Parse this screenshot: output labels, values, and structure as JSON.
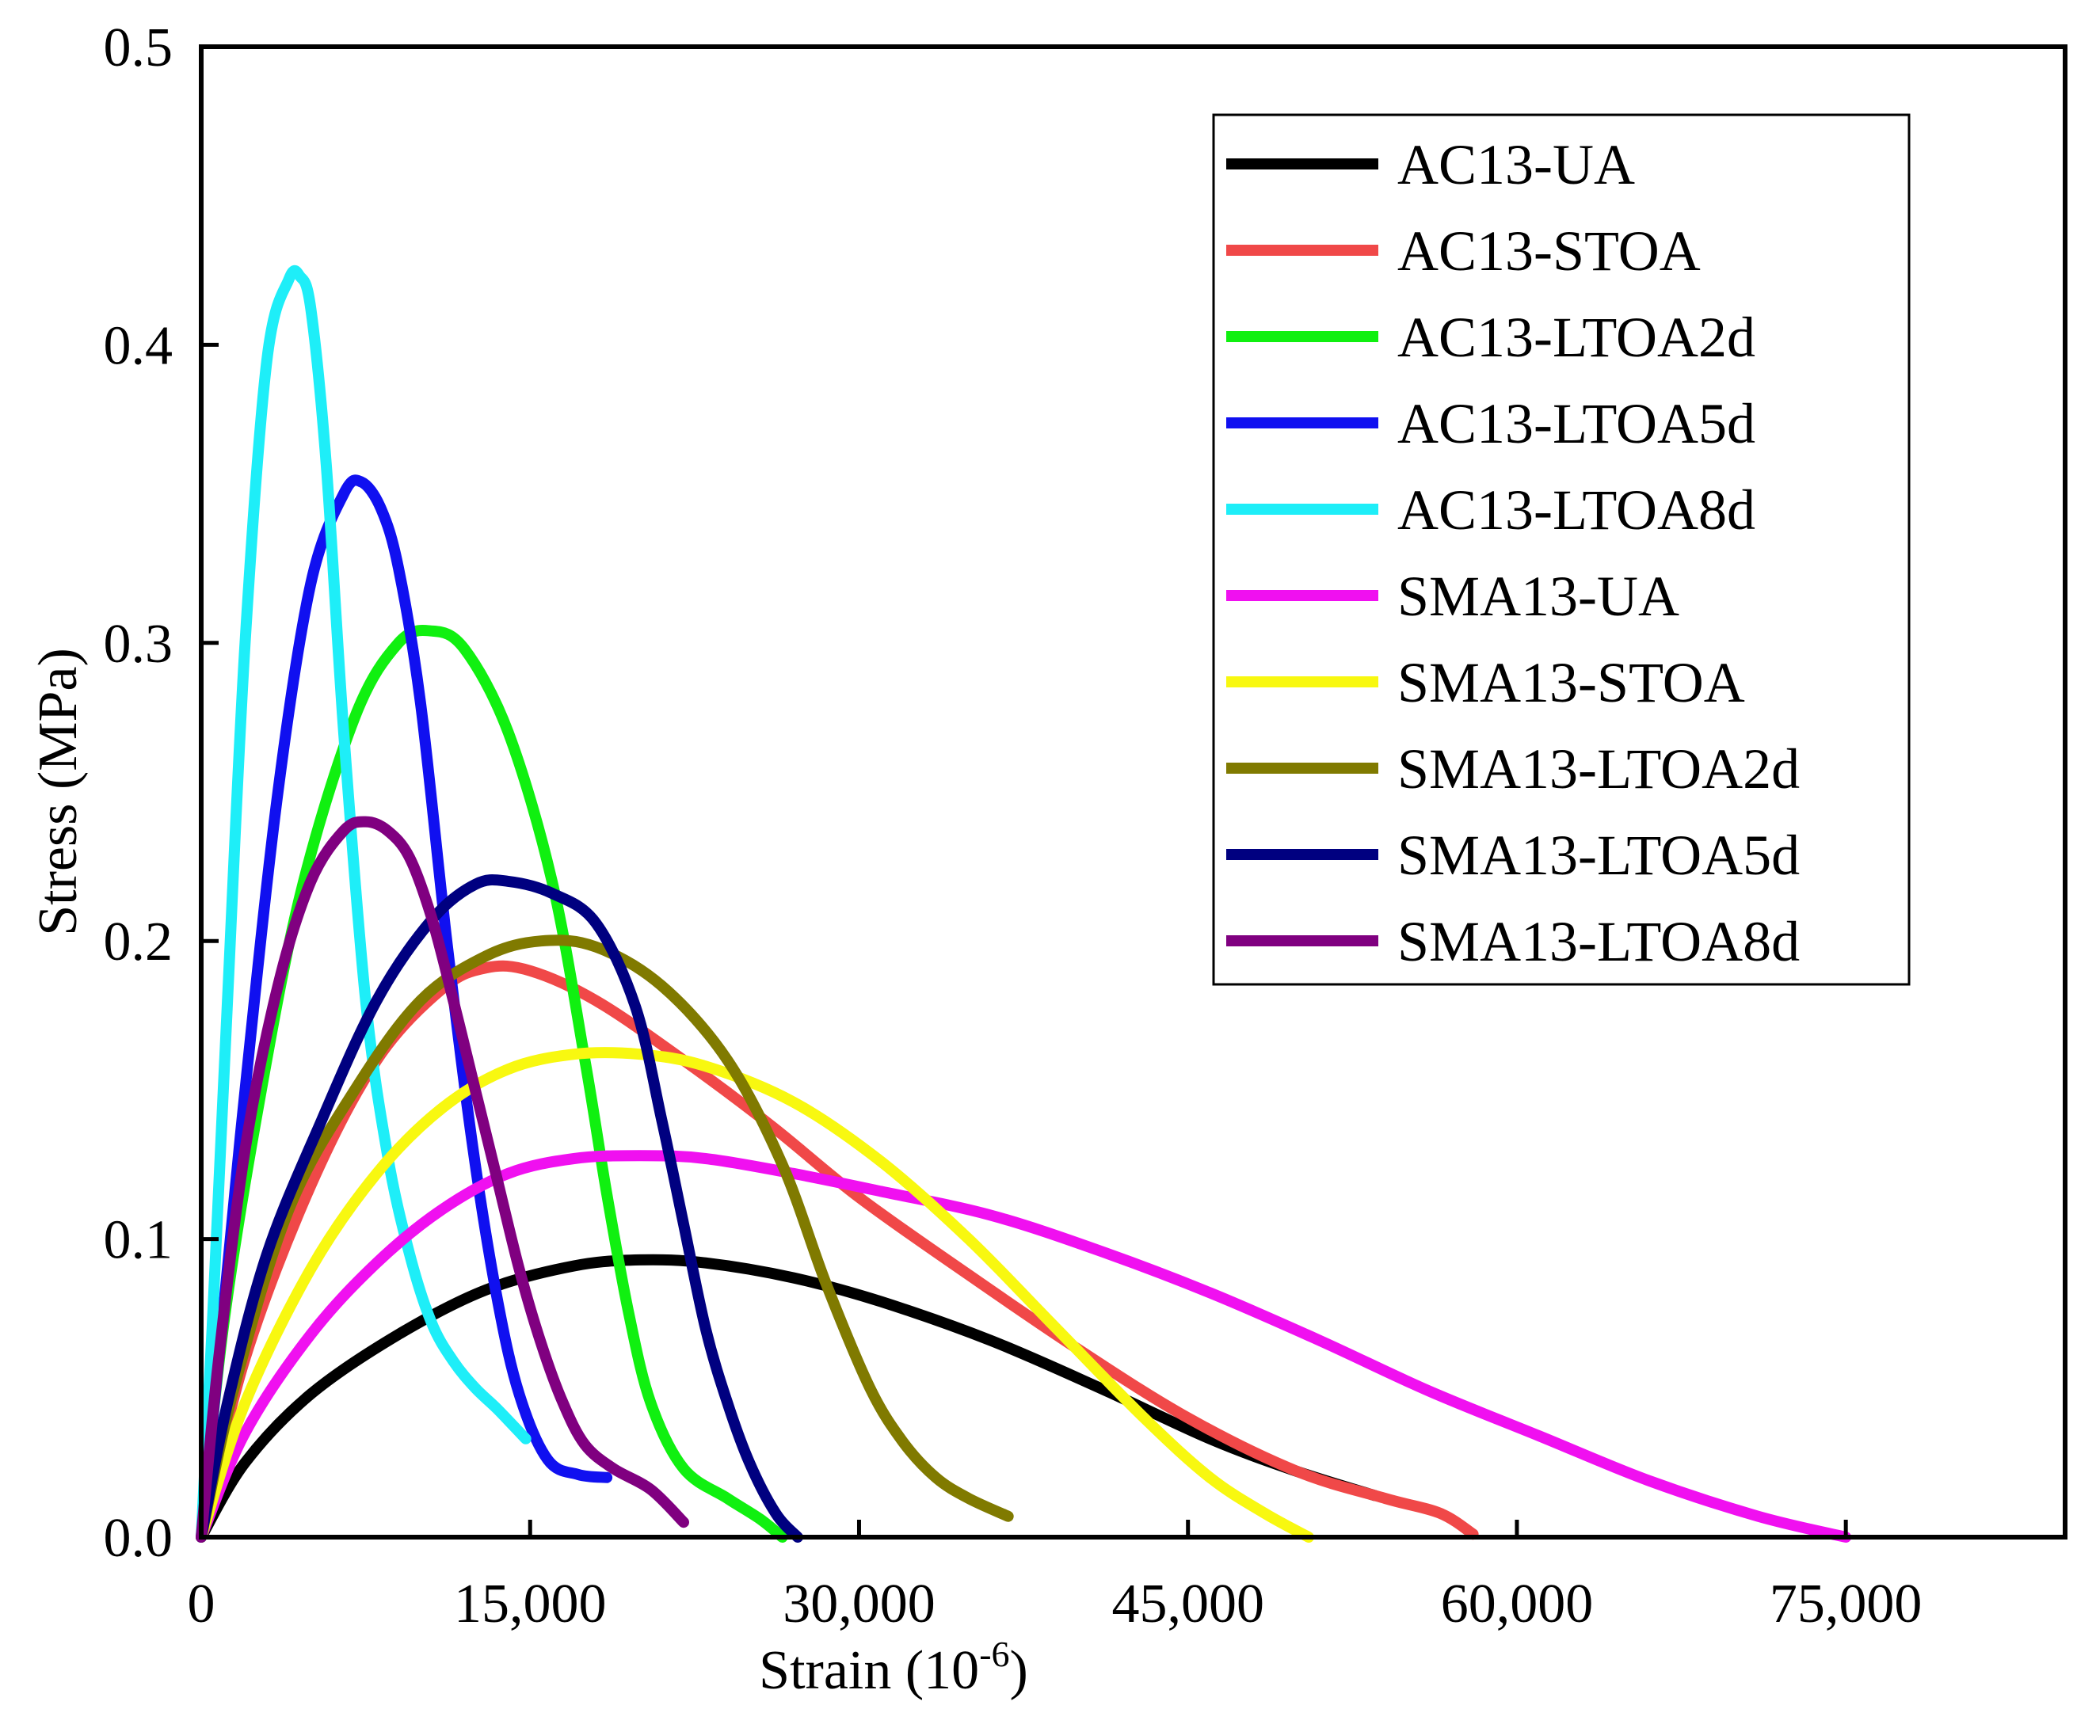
{
  "chart_data": {
    "type": "line",
    "title": "",
    "xlabel": "Strain (10",
    "xlabel_sup": "-6",
    "xlabel_close": ")",
    "ylabel": "Stress (MPa)",
    "xlim": [
      0,
      85000
    ],
    "ylim": [
      0,
      0.5
    ],
    "x_ticks": [
      0,
      15000,
      30000,
      45000,
      60000,
      75000
    ],
    "x_tick_labels": [
      "0",
      "15,000",
      "30,000",
      "45,000",
      "60,000",
      "75,000"
    ],
    "y_ticks": [
      0,
      0.1,
      0.2,
      0.3,
      0.4,
      0.5
    ],
    "y_tick_labels": [
      "0.0",
      "0.1",
      "0.2",
      "0.3",
      "0.4",
      "0.5"
    ],
    "grid": false,
    "legend_position": "top-right",
    "series": [
      {
        "name": "AC13-UA",
        "color": "#000000",
        "x": [
          0,
          2000,
          5000,
          9000,
          13000,
          17000,
          20000,
          23000,
          27000,
          31000,
          36000,
          41000,
          46000,
          50000,
          53500
        ],
        "y": [
          0,
          0.025,
          0.048,
          0.068,
          0.083,
          0.091,
          0.093,
          0.092,
          0.087,
          0.079,
          0.066,
          0.05,
          0.033,
          0.022,
          0.014
        ]
      },
      {
        "name": "AC13-STOA",
        "color": "#F04848",
        "x": [
          0,
          2000,
          5000,
          8000,
          11000,
          13000,
          15000,
          18000,
          22000,
          26000,
          30000,
          35000,
          40000,
          45000,
          50000,
          54000,
          56500,
          58000
        ],
        "y": [
          0,
          0.06,
          0.118,
          0.16,
          0.184,
          0.191,
          0.19,
          0.18,
          0.16,
          0.138,
          0.114,
          0.088,
          0.063,
          0.04,
          0.022,
          0.013,
          0.008,
          0.001
        ]
      },
      {
        "name": "AC13-LTOA2d",
        "color": "#10F010",
        "x": [
          0,
          1000,
          2500,
          4500,
          7000,
          9000,
          10500,
          12000,
          14000,
          16000,
          17500,
          18500,
          19500,
          20500,
          22000,
          24000,
          25500,
          26500
        ],
        "y": [
          0,
          0.07,
          0.14,
          0.215,
          0.275,
          0.3,
          0.304,
          0.298,
          0.27,
          0.22,
          0.16,
          0.115,
          0.075,
          0.045,
          0.023,
          0.013,
          0.006,
          0.0
        ]
      },
      {
        "name": "AC13-LTOA5d",
        "color": "#1010F0",
        "x": [
          0,
          800,
          2000,
          3500,
          5000,
          6500,
          7300,
          8200,
          9000,
          10000,
          11200,
          12400,
          13500,
          14500,
          15800,
          17200,
          18500
        ],
        "y": [
          0,
          0.06,
          0.15,
          0.25,
          0.32,
          0.35,
          0.354,
          0.345,
          0.325,
          0.28,
          0.2,
          0.13,
          0.08,
          0.048,
          0.026,
          0.021,
          0.02
        ]
      },
      {
        "name": "AC13-LTOA8d",
        "color": "#1EEEF8",
        "x": [
          0,
          500,
          1200,
          2000,
          3000,
          4000,
          4500,
          5000,
          5700,
          6500,
          7500,
          8500,
          9500,
          10500,
          11500,
          12500,
          13500,
          14800
        ],
        "y": [
          0,
          0.07,
          0.18,
          0.3,
          0.395,
          0.422,
          0.423,
          0.412,
          0.36,
          0.27,
          0.18,
          0.128,
          0.095,
          0.072,
          0.059,
          0.05,
          0.043,
          0.033
        ]
      },
      {
        "name": "SMA13-UA",
        "color": "#F010F0",
        "x": [
          0,
          2000,
          5000,
          8000,
          11000,
          14000,
          17000,
          20000,
          23000,
          27000,
          31000,
          36000,
          41000,
          46000,
          51000,
          56000,
          61000,
          66000,
          71000,
          75000
        ],
        "y": [
          0,
          0.035,
          0.068,
          0.092,
          0.11,
          0.122,
          0.127,
          0.128,
          0.127,
          0.122,
          0.116,
          0.108,
          0.096,
          0.082,
          0.066,
          0.049,
          0.034,
          0.019,
          0.007,
          0.0
        ]
      },
      {
        "name": "SMA13-STOA",
        "color": "#F8F810",
        "x": [
          0,
          2000,
          5000,
          8000,
          11000,
          14000,
          17000,
          20000,
          23000,
          27000,
          31000,
          35000,
          39000,
          43000,
          46000,
          48500,
          50500
        ],
        "y": [
          0,
          0.045,
          0.09,
          0.122,
          0.144,
          0.157,
          0.162,
          0.162,
          0.158,
          0.146,
          0.126,
          0.1,
          0.07,
          0.04,
          0.02,
          0.008,
          0.0
        ]
      },
      {
        "name": "SMA13-LTOA2d",
        "color": "#807A00",
        "x": [
          0,
          1500,
          4000,
          7000,
          10000,
          13000,
          15500,
          18000,
          21000,
          24000,
          26500,
          28500,
          30500,
          32000,
          33500,
          35000,
          36800
        ],
        "y": [
          0,
          0.05,
          0.11,
          0.15,
          0.18,
          0.195,
          0.2,
          0.198,
          0.185,
          0.16,
          0.125,
          0.085,
          0.05,
          0.032,
          0.02,
          0.013,
          0.007
        ]
      },
      {
        "name": "SMA13-LTOA5d",
        "color": "#000080",
        "x": [
          0,
          1200,
          3000,
          5500,
          8000,
          10500,
          12500,
          14000,
          16000,
          18000,
          19800,
          21000,
          22000,
          23000,
          24000,
          25000,
          26200,
          27200
        ],
        "y": [
          0,
          0.045,
          0.095,
          0.14,
          0.18,
          0.207,
          0.219,
          0.22,
          0.216,
          0.206,
          0.178,
          0.14,
          0.105,
          0.07,
          0.045,
          0.025,
          0.008,
          0.0
        ]
      },
      {
        "name": "SMA13-LTOA8d",
        "color": "#800080",
        "x": [
          0,
          800,
          2000,
          3500,
          5000,
          6500,
          7500,
          8500,
          9500,
          10500,
          11500,
          12500,
          13500,
          14500,
          15500,
          16500,
          17500,
          18800,
          20500,
          22000
        ],
        "y": [
          0,
          0.06,
          0.13,
          0.185,
          0.22,
          0.237,
          0.24,
          0.237,
          0.228,
          0.208,
          0.18,
          0.15,
          0.12,
          0.09,
          0.065,
          0.045,
          0.031,
          0.023,
          0.016,
          0.005
        ]
      }
    ]
  }
}
